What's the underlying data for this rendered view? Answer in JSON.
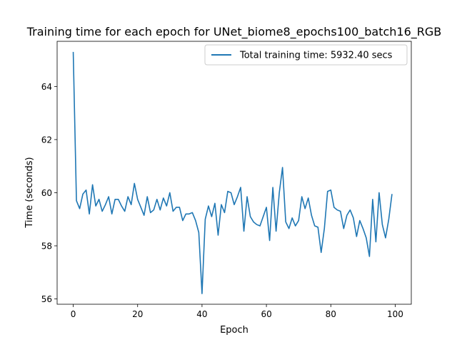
{
  "chart_data": {
    "type": "line",
    "title": "Training time for each epoch for UNet_biome8_epochs100_batch16_RGB",
    "xlabel": "Epoch",
    "ylabel": "Time (seconds)",
    "xlim": [
      -5,
      105
    ],
    "ylim": [
      55.8,
      65.7
    ],
    "xticks": [
      0,
      20,
      40,
      60,
      80,
      100
    ],
    "yticks": [
      56,
      58,
      60,
      62,
      64
    ],
    "grid": false,
    "legend_placement": "top-right",
    "colors": {
      "series": "#1f77b4"
    },
    "series": [
      {
        "name": "Total training time: 5932.40 secs",
        "x": [
          0,
          1,
          2,
          3,
          4,
          5,
          6,
          7,
          8,
          9,
          10,
          11,
          12,
          13,
          14,
          15,
          16,
          17,
          18,
          19,
          20,
          21,
          22,
          23,
          24,
          25,
          26,
          27,
          28,
          29,
          30,
          31,
          32,
          33,
          34,
          35,
          36,
          37,
          38,
          39,
          40,
          41,
          42,
          43,
          44,
          45,
          46,
          47,
          48,
          49,
          50,
          51,
          52,
          53,
          54,
          55,
          56,
          57,
          58,
          59,
          60,
          61,
          62,
          63,
          64,
          65,
          66,
          67,
          68,
          69,
          70,
          71,
          72,
          73,
          74,
          75,
          76,
          77,
          78,
          79,
          80,
          81,
          82,
          83,
          84,
          85,
          86,
          87,
          88,
          89,
          90,
          91,
          92,
          93,
          94,
          95,
          96,
          97,
          98,
          99
        ],
        "values": [
          65.3,
          59.7,
          59.4,
          59.95,
          60.1,
          59.2,
          60.3,
          59.5,
          59.75,
          59.3,
          59.55,
          59.85,
          59.2,
          59.75,
          59.75,
          59.5,
          59.3,
          59.85,
          59.55,
          60.35,
          59.75,
          59.45,
          59.15,
          59.85,
          59.25,
          59.35,
          59.75,
          59.35,
          59.8,
          59.5,
          60.0,
          59.3,
          59.45,
          59.45,
          58.95,
          59.2,
          59.2,
          59.25,
          58.95,
          58.5,
          56.2,
          59.0,
          59.5,
          59.1,
          59.6,
          58.4,
          59.55,
          59.25,
          60.05,
          60.0,
          59.55,
          59.85,
          60.2,
          58.55,
          59.85,
          59.1,
          58.9,
          58.8,
          58.75,
          59.1,
          59.45,
          58.2,
          60.2,
          58.55,
          60.0,
          60.95,
          58.9,
          58.65,
          59.05,
          58.75,
          58.95,
          59.85,
          59.4,
          59.8,
          59.15,
          58.75,
          58.7,
          57.75,
          58.65,
          60.05,
          60.1,
          59.45,
          59.35,
          59.3,
          58.65,
          59.15,
          59.35,
          59.05,
          58.35,
          58.95,
          58.65,
          58.3,
          57.6,
          59.75,
          58.15,
          60.0,
          58.8,
          58.3,
          59.0,
          59.95
        ]
      }
    ]
  }
}
